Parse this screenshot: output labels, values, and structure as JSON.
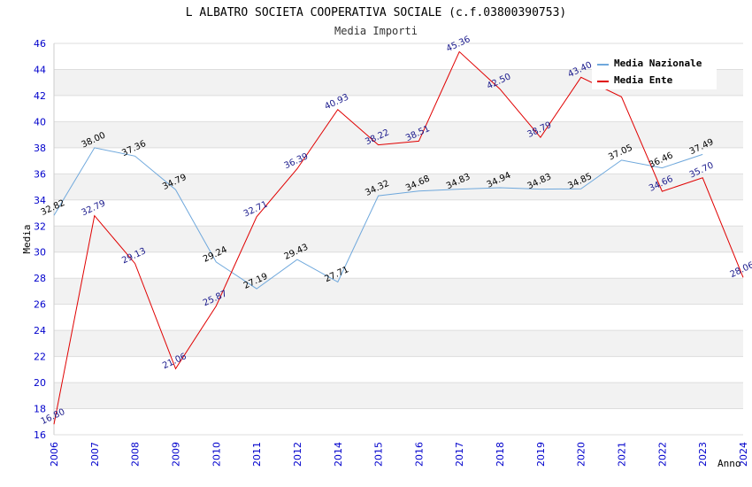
{
  "chart_data": {
    "type": "line",
    "title": "L ALBATRO SOCIETA COOPERATIVA SOCIALE (c.f.03800390753)",
    "subtitle": "Media Importi",
    "xlabel": "Anno",
    "ylabel": "Media",
    "ylim": [
      16,
      46
    ],
    "ytick_step": 2,
    "grid": true,
    "legend_position": "top-right",
    "x": [
      "2006",
      "2007",
      "2008",
      "2009",
      "2010",
      "2011",
      "2012",
      "2014",
      "2015",
      "2016",
      "2017",
      "2018",
      "2019",
      "2020",
      "2021",
      "2022",
      "2023",
      "2024"
    ],
    "series": [
      {
        "name": "Media Nazionale",
        "color": "#6fa8dc",
        "values": [
          32.82,
          38.0,
          37.36,
          34.79,
          29.24,
          27.19,
          29.43,
          27.71,
          34.32,
          34.68,
          34.83,
          34.94,
          34.83,
          34.85,
          37.05,
          36.46,
          37.49,
          null
        ],
        "labels": [
          "32.82",
          "38.00",
          "37.36",
          "34.79",
          "29.24",
          "27.19",
          "29.43",
          "27.71",
          "34.32",
          "34.68",
          "34.83",
          "34.94",
          "34.83",
          "34.85",
          "37.05",
          "36.46",
          "37.49",
          ""
        ]
      },
      {
        "name": "Media Ente",
        "color": "#e00000",
        "values": [
          16.8,
          32.79,
          29.13,
          21.06,
          25.87,
          32.71,
          36.39,
          40.93,
          38.22,
          38.51,
          45.36,
          42.5,
          38.79,
          43.4,
          41.9,
          34.66,
          35.7,
          28.06
        ],
        "labels": [
          "16.80",
          "32.79",
          "29.13",
          "21.06",
          "25.87",
          "32.71",
          "36.39",
          "40.93",
          "38.22",
          "38.51",
          "45.36",
          "42.50",
          "38.79",
          "43.40",
          "",
          "34.66",
          "35.70",
          "28.06"
        ]
      }
    ]
  }
}
